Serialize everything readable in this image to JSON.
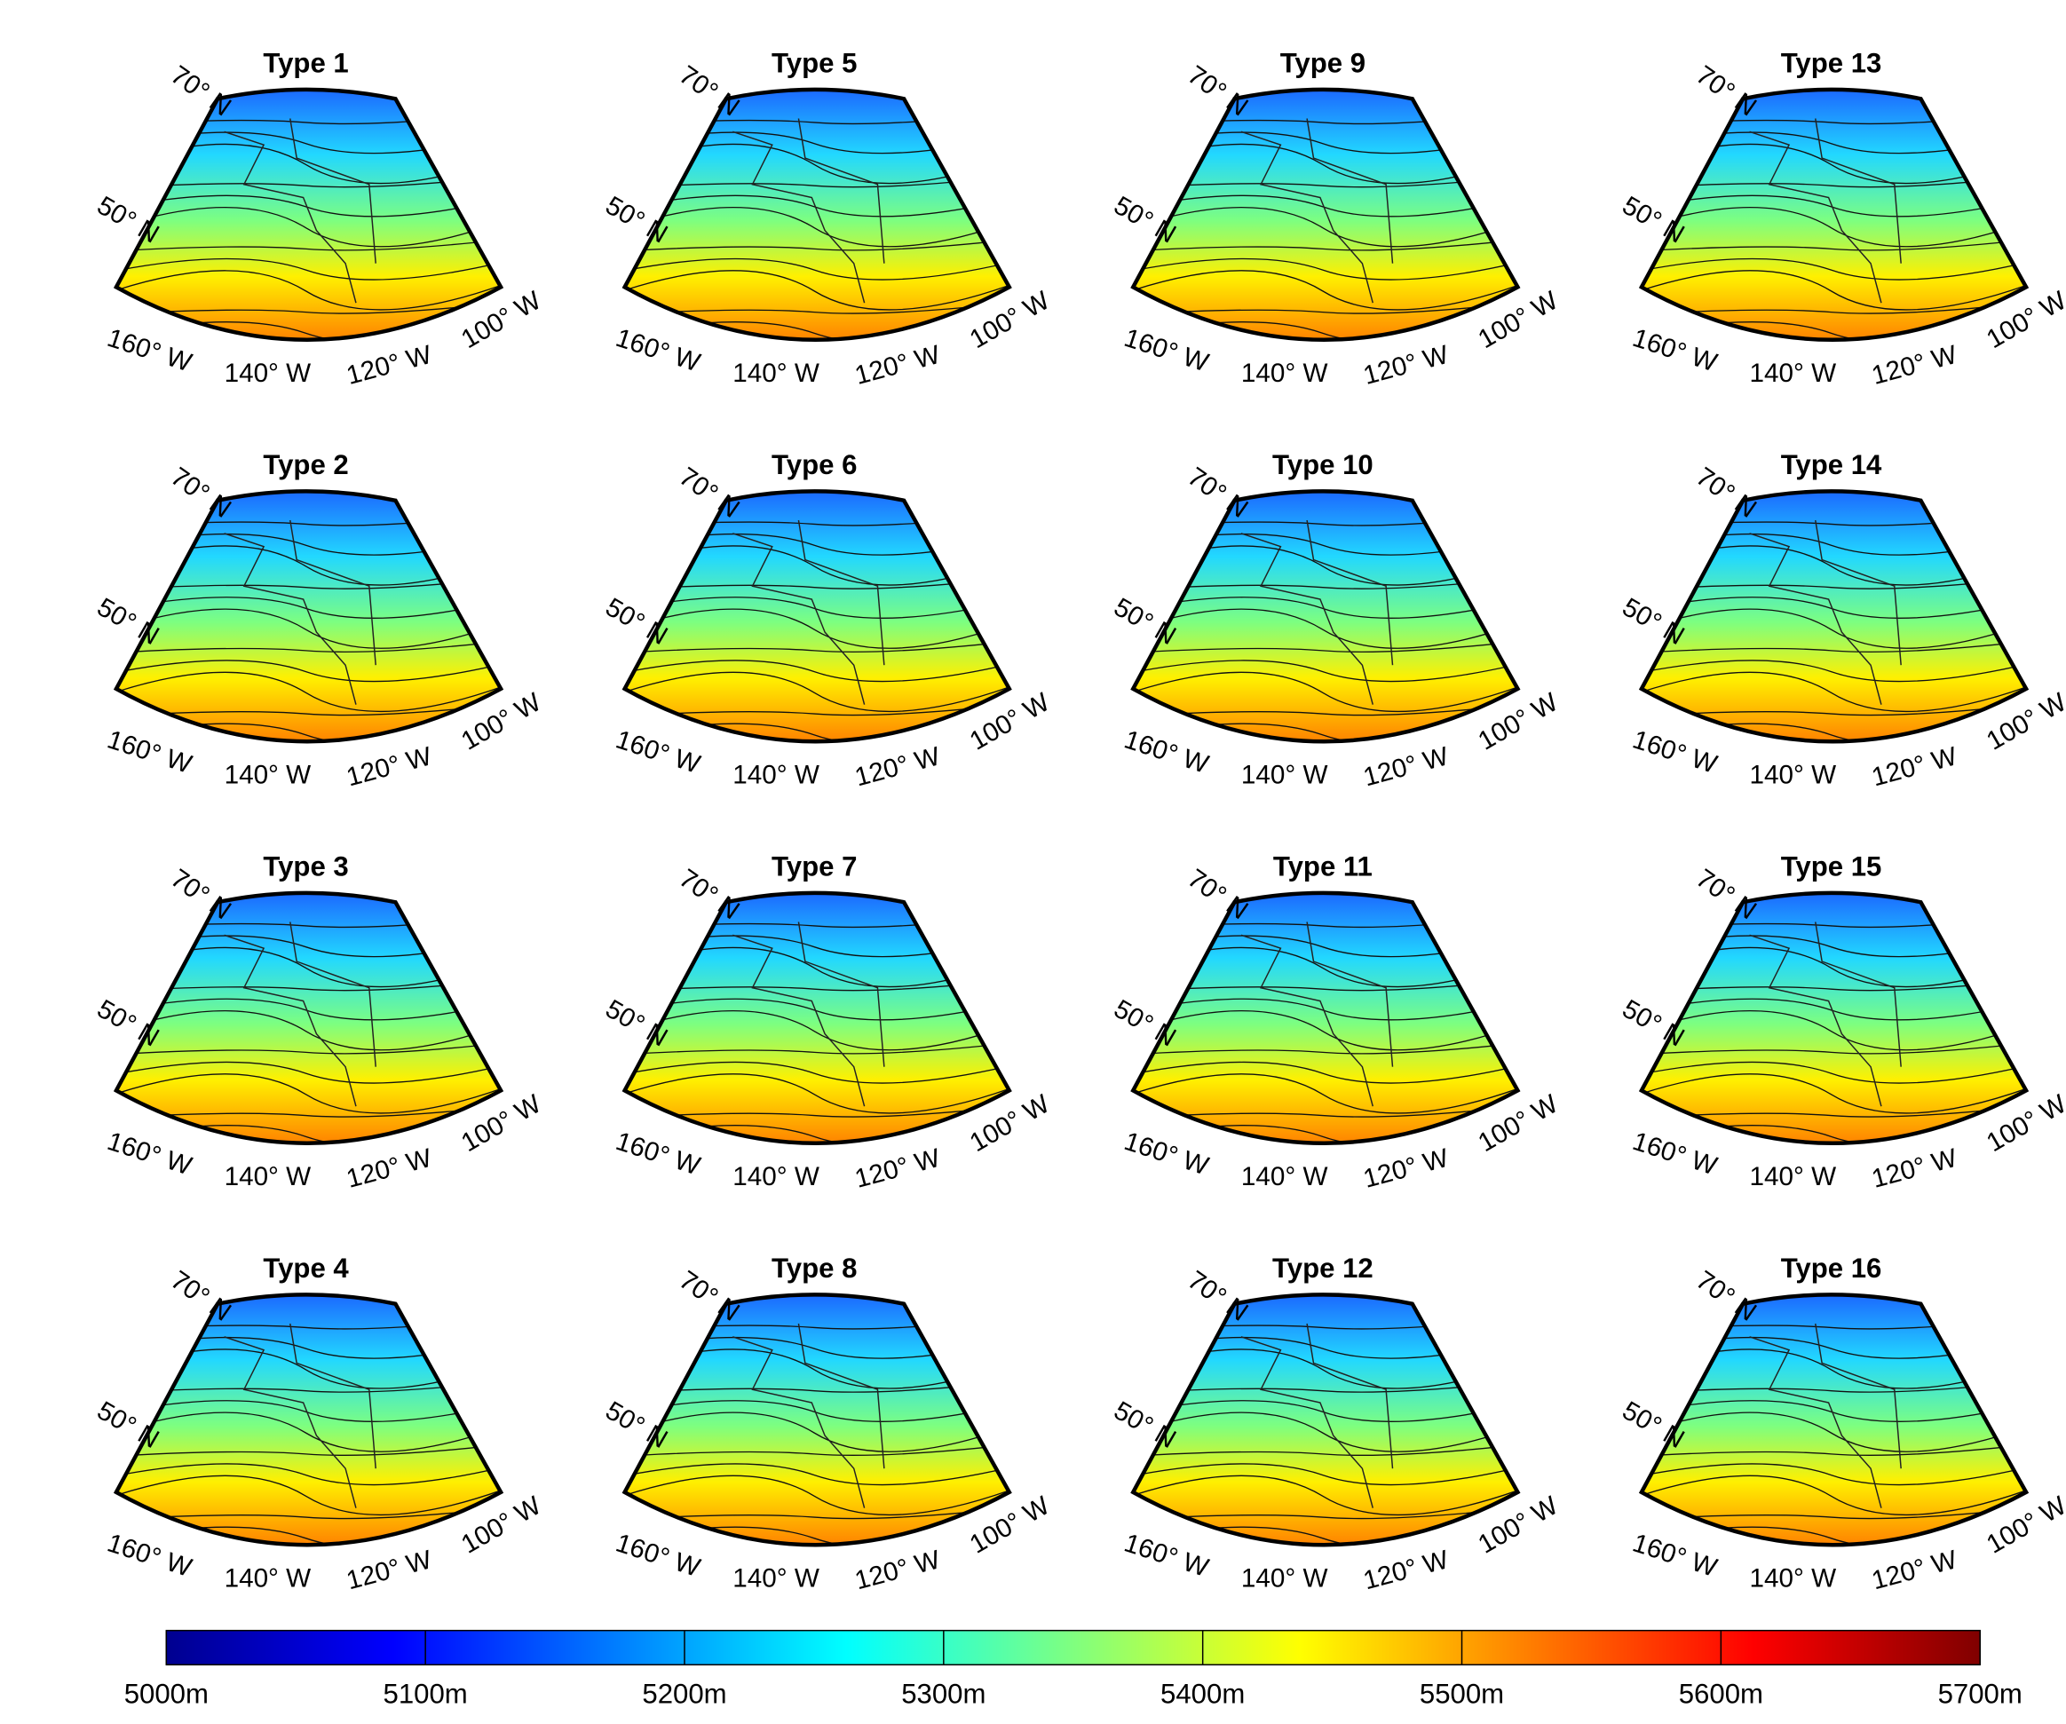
{
  "panels": [
    {
      "title": "Type 1"
    },
    {
      "title": "Type 2"
    },
    {
      "title": "Type 3"
    },
    {
      "title": "Type 4"
    },
    {
      "title": "Type 5"
    },
    {
      "title": "Type 6"
    },
    {
      "title": "Type 7"
    },
    {
      "title": "Type 8"
    },
    {
      "title": "Type 9"
    },
    {
      "title": "Type 10"
    },
    {
      "title": "Type 11"
    },
    {
      "title": "Type 12"
    },
    {
      "title": "Type 13"
    },
    {
      "title": "Type 14"
    },
    {
      "title": "Type 15"
    },
    {
      "title": "Type 16"
    }
  ],
  "graticule": {
    "lat": [
      "70° N",
      "50° N"
    ],
    "lon": [
      "160° W",
      "140° W",
      "120° W",
      "100° W"
    ]
  },
  "colorbar": {
    "lim": [
      5000,
      5700
    ],
    "ticks": [
      {
        "value": 5000,
        "label": "5000m"
      },
      {
        "value": 5100,
        "label": "5100m"
      },
      {
        "value": 5200,
        "label": "5200m"
      },
      {
        "value": 5300,
        "label": "5300m"
      },
      {
        "value": 5400,
        "label": "5400m"
      },
      {
        "value": 5500,
        "label": "5500m"
      },
      {
        "value": 5600,
        "label": "5600m"
      },
      {
        "value": 5700,
        "label": "5700m"
      }
    ]
  }
}
